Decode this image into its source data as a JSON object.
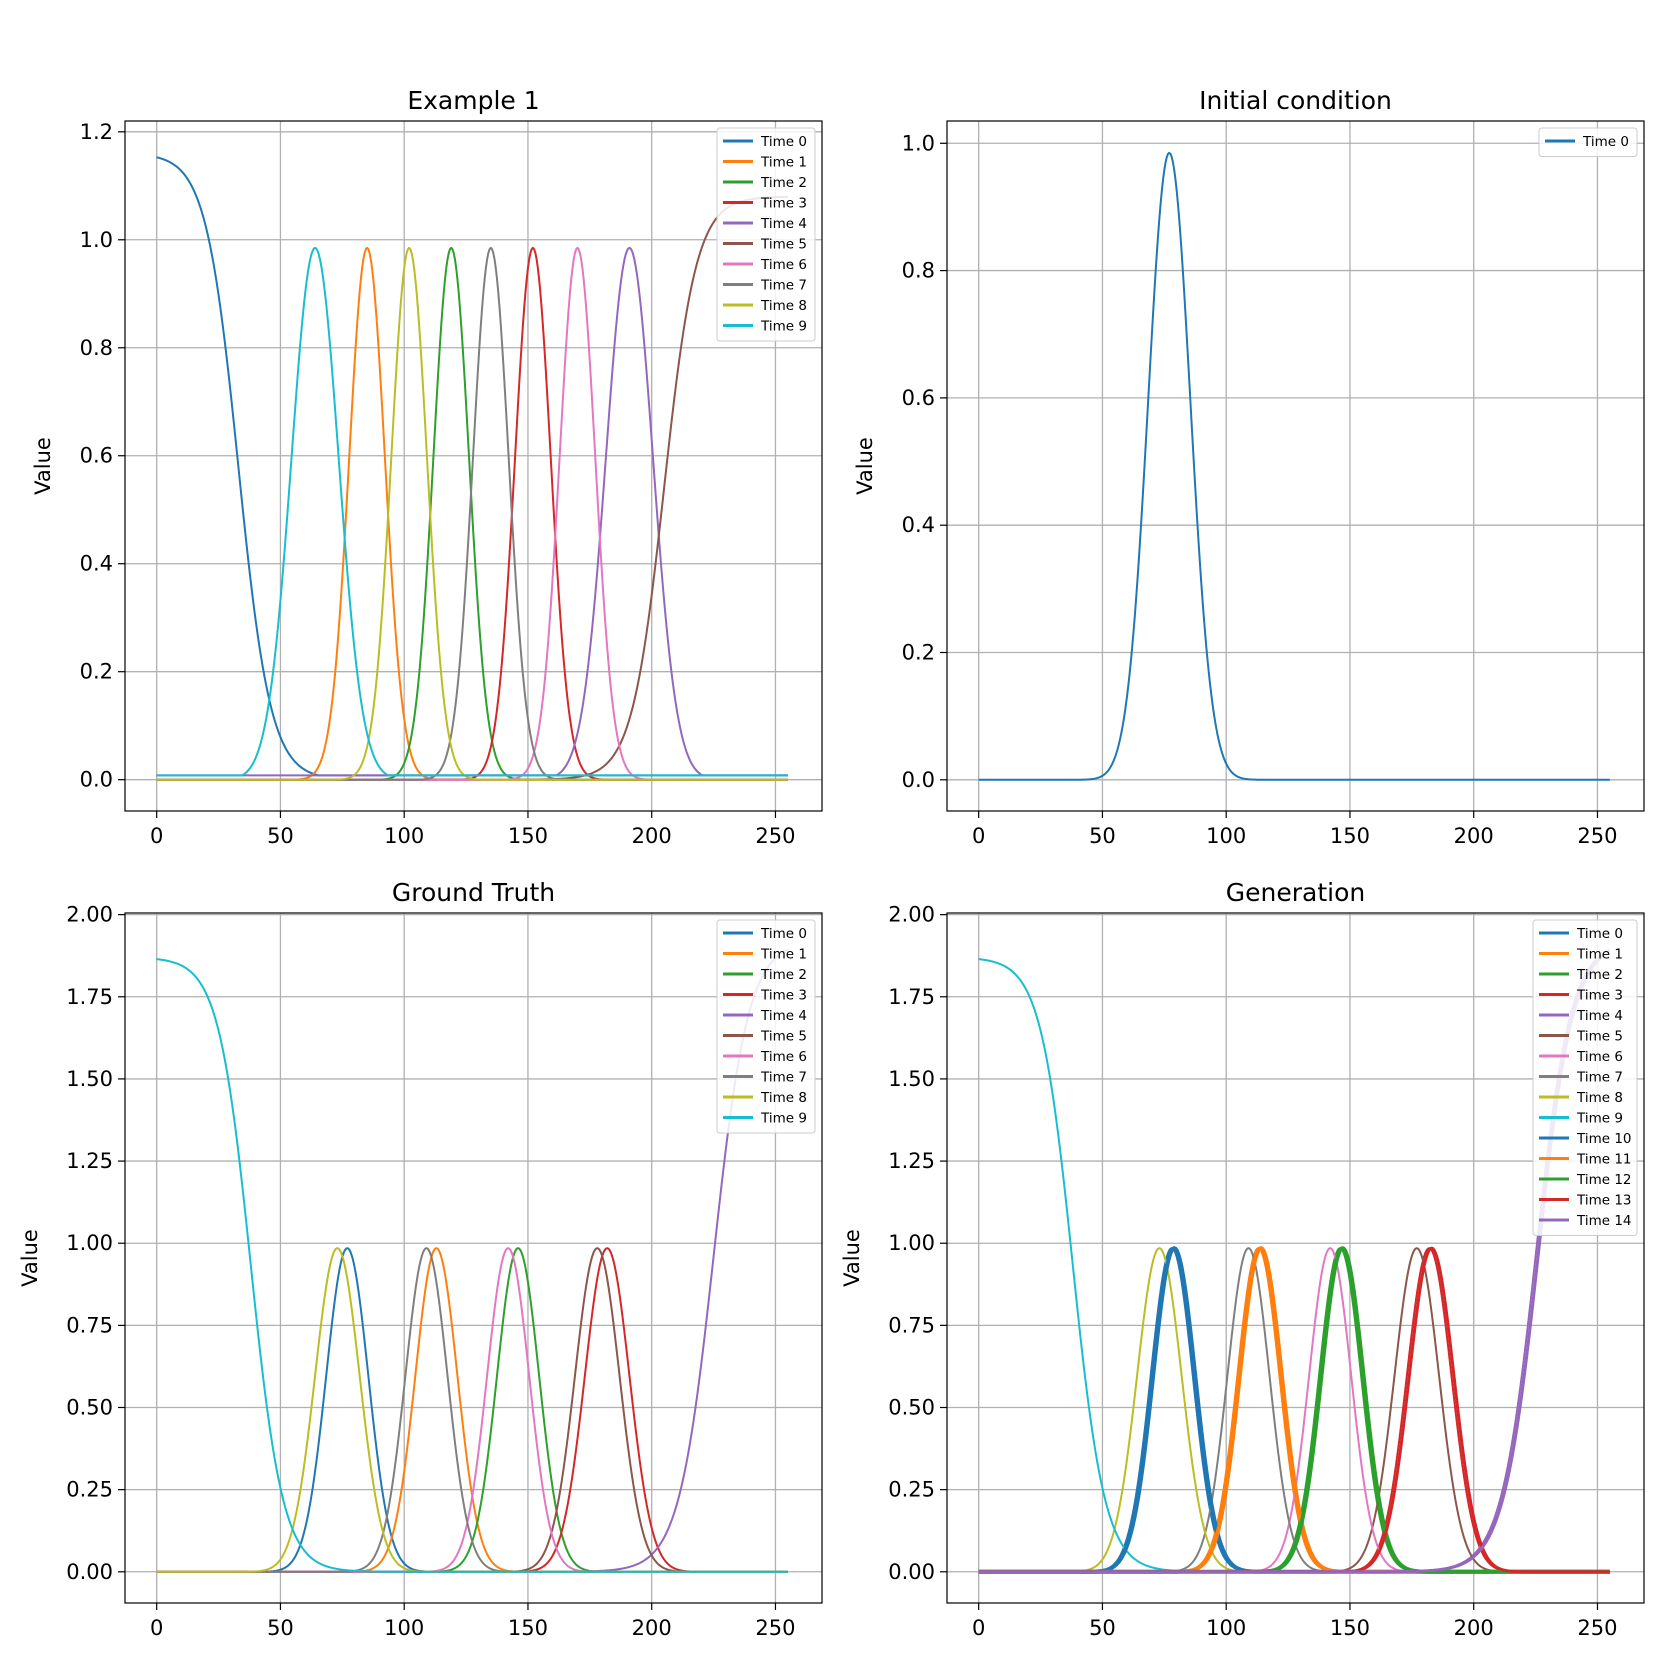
{
  "colors": [
    "#1f77b4",
    "#ff7f0e",
    "#2ca02c",
    "#d62728",
    "#9467bd",
    "#8c564b",
    "#e377c2",
    "#7f7f7f",
    "#bcbd22",
    "#17becf"
  ],
  "chart_data": [
    {
      "type": "line",
      "title": "Example 1",
      "xlabel": "",
      "ylabel": "Value",
      "xlim": [
        -12.8,
        268.8
      ],
      "ylim": [
        -0.058,
        1.22
      ],
      "xticks": [
        0,
        50,
        100,
        150,
        200,
        250
      ],
      "xtick_labels": [
        "0",
        "50",
        "100",
        "150",
        "200",
        "250"
      ],
      "yticks": [
        0.0,
        0.2,
        0.4,
        0.6,
        0.8,
        1.0,
        1.2
      ],
      "ytick_labels": [
        "0.0",
        "0.2",
        "0.4",
        "0.6",
        "0.8",
        "1.0",
        "1.2"
      ],
      "grid": true,
      "legend": "top-right",
      "x_range": [
        0,
        255
      ],
      "series": [
        {
          "name": "Time 0",
          "shape": "plateau",
          "amp": 1.16,
          "left": 33,
          "right": 48,
          "base": 0.008,
          "lw": 2
        },
        {
          "name": "Time 1",
          "shape": "gauss",
          "amp": 0.985,
          "center": 85,
          "sigma": 7.2,
          "lw": 2
        },
        {
          "name": "Time 2",
          "shape": "gauss",
          "amp": 0.985,
          "center": 119,
          "sigma": 7.2,
          "lw": 2
        },
        {
          "name": "Time 3",
          "shape": "gauss",
          "amp": 0.985,
          "center": 152,
          "sigma": 7.2,
          "lw": 2
        },
        {
          "name": "Time 4",
          "shape": "gauss",
          "amp": 0.985,
          "center": 191,
          "sigma": 9.5,
          "base": 0.008,
          "lw": 2
        },
        {
          "name": "Time 5",
          "shape": "plateau",
          "amp": 1.08,
          "left": 223,
          "right": 300,
          "lw": 2
        },
        {
          "name": "Time 6",
          "shape": "gauss",
          "amp": 0.985,
          "center": 170,
          "sigma": 7.2,
          "lw": 2
        },
        {
          "name": "Time 7",
          "shape": "gauss",
          "amp": 0.985,
          "center": 135,
          "sigma": 7.2,
          "lw": 2
        },
        {
          "name": "Time 8",
          "shape": "gauss",
          "amp": 0.985,
          "center": 102,
          "sigma": 7.2,
          "lw": 2
        },
        {
          "name": "Time 9",
          "shape": "gauss",
          "amp": 0.985,
          "center": 64,
          "sigma": 9.5,
          "base": 0.008,
          "lw": 2
        }
      ]
    },
    {
      "type": "line",
      "title": "Initial condition",
      "xlabel": "",
      "ylabel": "Value",
      "xlim": [
        -12.8,
        268.8
      ],
      "ylim": [
        -0.049,
        1.035
      ],
      "xticks": [
        0,
        50,
        100,
        150,
        200,
        250
      ],
      "xtick_labels": [
        "0",
        "50",
        "100",
        "150",
        "200",
        "250"
      ],
      "yticks": [
        0.0,
        0.2,
        0.4,
        0.6,
        0.8,
        1.0
      ],
      "ytick_labels": [
        "0.0",
        "0.2",
        "0.4",
        "0.6",
        "0.8",
        "1.0"
      ],
      "grid": true,
      "legend": "top-right",
      "x_range": [
        0,
        255
      ],
      "series": [
        {
          "name": "Time 0",
          "shape": "gauss",
          "amp": 0.985,
          "center": 77,
          "sigma": 8.5,
          "lw": 2
        }
      ]
    },
    {
      "type": "line",
      "title": "Ground Truth",
      "xlabel": "",
      "ylabel": "Value",
      "xlim": [
        -12.8,
        268.8
      ],
      "ylim": [
        -0.095,
        2.005
      ],
      "xticks": [
        0,
        50,
        100,
        150,
        200,
        250
      ],
      "xtick_labels": [
        "0",
        "50",
        "100",
        "150",
        "200",
        "250"
      ],
      "yticks": [
        0.0,
        0.25,
        0.5,
        0.75,
        1.0,
        1.25,
        1.5,
        1.75,
        2.0
      ],
      "ytick_labels": [
        "0.00",
        "0.25",
        "0.50",
        "0.75",
        "1.00",
        "1.25",
        "1.50",
        "1.75",
        "2.00"
      ],
      "grid": true,
      "legend": "top-right",
      "x_range": [
        0,
        255
      ],
      "series": [
        {
          "name": "Time 0",
          "shape": "gauss",
          "amp": 0.985,
          "center": 77,
          "sigma": 8.5,
          "lw": 2
        },
        {
          "name": "Time 1",
          "shape": "gauss",
          "amp": 0.985,
          "center": 113,
          "sigma": 8.5,
          "lw": 2
        },
        {
          "name": "Time 2",
          "shape": "gauss",
          "amp": 0.985,
          "center": 146,
          "sigma": 8.5,
          "lw": 2
        },
        {
          "name": "Time 3",
          "shape": "gauss",
          "amp": 0.985,
          "center": 182,
          "sigma": 9,
          "lw": 2
        },
        {
          "name": "Time 4",
          "shape": "rise",
          "amp": 1.92,
          "left": 225,
          "lw": 2
        },
        {
          "name": "Time 5",
          "shape": "gauss",
          "amp": 0.985,
          "center": 178,
          "sigma": 9,
          "lw": 2
        },
        {
          "name": "Time 6",
          "shape": "gauss",
          "amp": 0.985,
          "center": 142,
          "sigma": 8.5,
          "lw": 2
        },
        {
          "name": "Time 7",
          "shape": "gauss",
          "amp": 0.985,
          "center": 109,
          "sigma": 8.5,
          "lw": 2
        },
        {
          "name": "Time 8",
          "shape": "gauss",
          "amp": 0.985,
          "center": 73,
          "sigma": 9,
          "lw": 2
        },
        {
          "name": "Time 9",
          "shape": "plateau",
          "amp": 1.87,
          "left": 38,
          "right": 300,
          "lw": 2
        }
      ]
    },
    {
      "type": "line",
      "title": "Generation",
      "xlabel": "",
      "ylabel": "Value",
      "xlim": [
        -12.8,
        268.8
      ],
      "ylim": [
        -0.095,
        2.005
      ],
      "xticks": [
        0,
        50,
        100,
        150,
        200,
        250
      ],
      "xtick_labels": [
        "0",
        "50",
        "100",
        "150",
        "200",
        "250"
      ],
      "yticks": [
        0.0,
        0.25,
        0.5,
        0.75,
        1.0,
        1.25,
        1.5,
        1.75,
        2.0
      ],
      "ytick_labels": [
        "0.00",
        "0.25",
        "0.50",
        "0.75",
        "1.00",
        "1.25",
        "1.50",
        "1.75",
        "2.00"
      ],
      "grid": true,
      "legend": "top-right",
      "x_range": [
        0,
        255
      ],
      "series": [
        {
          "name": "Time 0",
          "shape": "gauss",
          "amp": 0.985,
          "center": 78,
          "sigma": 8.5,
          "lw": 2
        },
        {
          "name": "Time 1",
          "shape": "gauss",
          "amp": 0.985,
          "center": 113,
          "sigma": 8.5,
          "lw": 2
        },
        {
          "name": "Time 2",
          "shape": "gauss",
          "amp": 0.985,
          "center": 146,
          "sigma": 8.5,
          "lw": 2
        },
        {
          "name": "Time 3",
          "shape": "gauss",
          "amp": 0.985,
          "center": 182,
          "sigma": 9,
          "lw": 2
        },
        {
          "name": "Time 4",
          "shape": "rise",
          "amp": 1.92,
          "left": 225,
          "lw": 2
        },
        {
          "name": "Time 5",
          "shape": "gauss",
          "amp": 0.985,
          "center": 177,
          "sigma": 9,
          "lw": 2
        },
        {
          "name": "Time 6",
          "shape": "gauss",
          "amp": 0.985,
          "center": 142,
          "sigma": 8.5,
          "lw": 2
        },
        {
          "name": "Time 7",
          "shape": "gauss",
          "amp": 0.985,
          "center": 109,
          "sigma": 8.5,
          "lw": 2
        },
        {
          "name": "Time 8",
          "shape": "gauss",
          "amp": 0.985,
          "center": 73,
          "sigma": 9,
          "lw": 2
        },
        {
          "name": "Time 9",
          "shape": "plateau",
          "amp": 1.87,
          "left": 38,
          "right": 300,
          "lw": 2
        },
        {
          "name": "Time 10",
          "shape": "gauss",
          "amp": 0.985,
          "center": 79,
          "sigma": 8.5,
          "lw": 4
        },
        {
          "name": "Time 11",
          "shape": "gauss",
          "amp": 0.985,
          "center": 114,
          "sigma": 8.5,
          "lw": 4
        },
        {
          "name": "Time 12",
          "shape": "gauss",
          "amp": 0.985,
          "center": 147,
          "sigma": 8.5,
          "lw": 4
        },
        {
          "name": "Time 13",
          "shape": "gauss",
          "amp": 0.985,
          "center": 183,
          "sigma": 9,
          "lw": 3
        },
        {
          "name": "Time 14",
          "shape": "rise",
          "amp": 1.92,
          "left": 226,
          "lw": 3
        }
      ]
    }
  ]
}
